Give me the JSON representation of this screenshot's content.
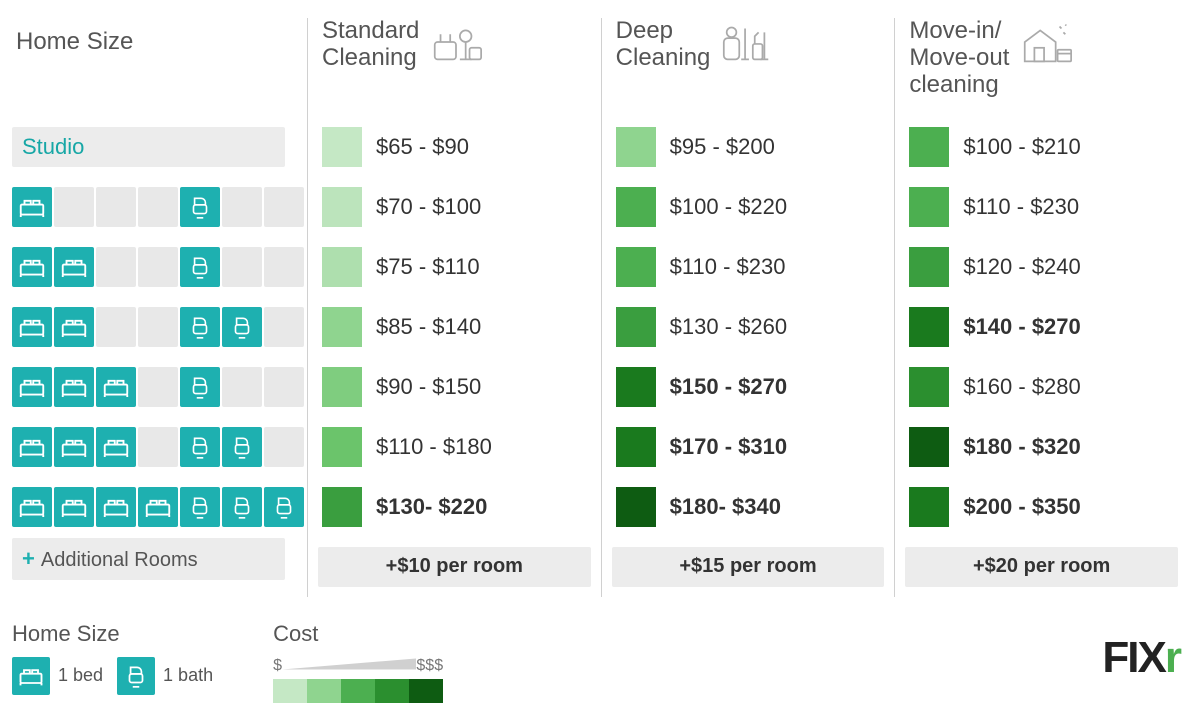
{
  "headers": {
    "home_size": "Home Size",
    "standard": "Standard Cleaning",
    "deep": "Deep Cleaning",
    "move": "Move-in/ Move-out cleaning"
  },
  "studio_label": "Studio",
  "rows": [
    {
      "beds": 0,
      "baths": 0,
      "studio": true,
      "standard": {
        "price": "$65 - $90",
        "color": "#c5e8c5",
        "bold": false
      },
      "deep": {
        "price": "$95 - $200",
        "color": "#8fd48f",
        "bold": false
      },
      "move": {
        "price": "$100 - $210",
        "color": "#4caf50",
        "bold": false
      }
    },
    {
      "beds": 1,
      "baths": 1,
      "standard": {
        "price": "$70 - $100",
        "color": "#bce4bc",
        "bold": false
      },
      "deep": {
        "price": "$100 - $220",
        "color": "#4caf50",
        "bold": false
      },
      "move": {
        "price": "$110 - $230",
        "color": "#4caf50",
        "bold": false
      }
    },
    {
      "beds": 2,
      "baths": 1,
      "standard": {
        "price": "$75 - $110",
        "color": "#aedfae",
        "bold": false
      },
      "deep": {
        "price": "$110 - $230",
        "color": "#4caf50",
        "bold": false
      },
      "move": {
        "price": "$120 - $240",
        "color": "#3a9e3f",
        "bold": false
      }
    },
    {
      "beds": 2,
      "baths": 2,
      "standard": {
        "price": "$85 - $140",
        "color": "#8fd48f",
        "bold": false
      },
      "deep": {
        "price": "$130 - $260",
        "color": "#3a9e3f",
        "bold": false
      },
      "move": {
        "price": "$140 - $270",
        "color": "#1a7a1e",
        "bold": true
      }
    },
    {
      "beds": 3,
      "baths": 1,
      "standard": {
        "price": "$90 - $150",
        "color": "#7fcd7f",
        "bold": false
      },
      "deep": {
        "price": "$150 - $270",
        "color": "#1a7a1e",
        "bold": true
      },
      "move": {
        "price": "$160 - $280",
        "color": "#2b8f2f",
        "bold": false
      }
    },
    {
      "beds": 3,
      "baths": 2,
      "standard": {
        "price": "$110 - $180",
        "color": "#6bc46b",
        "bold": false
      },
      "deep": {
        "price": "$170 - $310",
        "color": "#1a7a1e",
        "bold": true
      },
      "move": {
        "price": "$180 - $320",
        "color": "#0e5c12",
        "bold": true
      }
    },
    {
      "beds": 4,
      "baths": 3,
      "standard": {
        "price": "$130- $220",
        "color": "#3a9e3f",
        "bold": true
      },
      "deep": {
        "price": "$180- $340",
        "color": "#0e5c12",
        "bold": true
      },
      "move": {
        "price": "$200 - $350",
        "color": "#1a7a1e",
        "bold": true
      }
    }
  ],
  "additional": {
    "label": "Additional Rooms",
    "standard": "+$10 per room",
    "deep": "+$15 per room",
    "move": "+$20 per room"
  },
  "legend": {
    "home_title": "Home Size",
    "bed_label": "1 bed",
    "bath_label": "1 bath",
    "cost_title": "Cost",
    "cost_low": "$",
    "cost_high": "$$$",
    "scale_colors": [
      "#c5e8c5",
      "#8fd48f",
      "#4caf50",
      "#2b8f2f",
      "#0e5c12"
    ]
  },
  "layout": {
    "home_col_slots": 7,
    "bed_slot_max": 4,
    "teal": "#1eb0b0",
    "empty": "#e8e8e8"
  },
  "logo": {
    "text": "FIX",
    "accent": "r"
  }
}
